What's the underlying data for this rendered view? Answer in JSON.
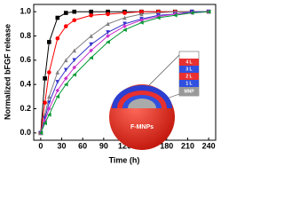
{
  "chart_data": {
    "type": "line",
    "x_label": "Time (h)",
    "y_label": "Normalized bFGF release",
    "x": [
      0,
      6,
      12,
      24,
      36,
      48,
      72,
      96,
      120,
      144,
      168,
      192,
      216,
      240
    ],
    "series": [
      {
        "color": "#000000",
        "marker": "square",
        "values": [
          0,
          0.45,
          0.75,
          0.95,
          0.99,
          1.0,
          1.0,
          1.0,
          1.0,
          1.0,
          1.0,
          1.0,
          1.0,
          1.0
        ]
      },
      {
        "color": "#ff0000",
        "marker": "circle",
        "values": [
          0,
          0.25,
          0.5,
          0.78,
          0.88,
          0.93,
          0.97,
          0.98,
          0.99,
          1.0,
          1.0,
          1.0,
          1.0,
          1.0
        ]
      },
      {
        "color": "#808080",
        "marker": "triangle",
        "values": [
          0,
          0.15,
          0.3,
          0.5,
          0.6,
          0.68,
          0.8,
          0.9,
          0.95,
          0.98,
          0.99,
          1.0,
          1.0,
          1.0
        ]
      },
      {
        "color": "#3333cc",
        "marker": "triangle-down",
        "values": [
          0,
          0.12,
          0.25,
          0.42,
          0.52,
          0.6,
          0.73,
          0.83,
          0.9,
          0.94,
          0.97,
          0.98,
          1.0,
          1.0
        ]
      },
      {
        "color": "#cc33cc",
        "marker": "diamond",
        "values": [
          0,
          0.1,
          0.2,
          0.35,
          0.45,
          0.54,
          0.68,
          0.8,
          0.88,
          0.93,
          0.96,
          0.98,
          0.99,
          1.0
        ]
      },
      {
        "color": "#009933",
        "marker": "triangle-left",
        "values": [
          0,
          0.08,
          0.15,
          0.3,
          0.4,
          0.48,
          0.62,
          0.75,
          0.85,
          0.91,
          0.95,
          0.97,
          0.99,
          1.0
        ]
      }
    ],
    "xlim": [
      -10,
      250
    ],
    "ylim": [
      -0.06,
      1.06
    ],
    "xticks": [
      0,
      30,
      60,
      90,
      120,
      150,
      180,
      210,
      240
    ],
    "yticks": [
      {
        "value": 0,
        "label": "0.0"
      },
      0.2,
      0.4,
      0.6,
      0.8,
      {
        "value": 1,
        "label": "1.0"
      }
    ]
  },
  "inset": {
    "sphere_label": "F-MNPs",
    "layers": [
      "4 L",
      "3 L",
      "2 L",
      "1 L",
      "MNP"
    ]
  }
}
